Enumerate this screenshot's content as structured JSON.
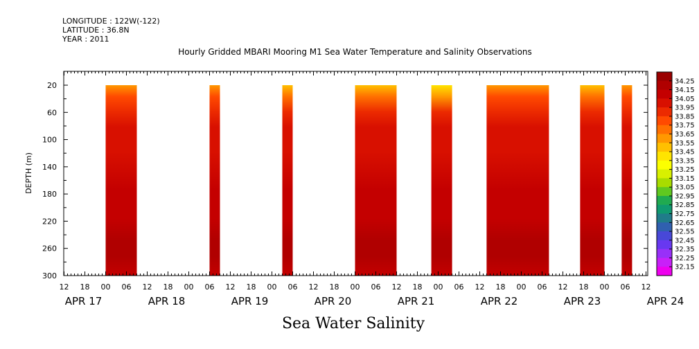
{
  "header": {
    "longitude": "LONGITUDE : 122W(-122)",
    "latitude": "LATITUDE : 36.8N",
    "year": "YEAR : 2011",
    "title": "Hourly Gridded MBARI Mooring M1 Sea Water Temperature and Salinity Observations"
  },
  "footer": {
    "label": "Sea Water Salinity"
  },
  "chart_data": {
    "type": "heatmap",
    "title": "Hourly Gridded MBARI Mooring M1 Sea Water Temperature and Salinity Observations",
    "xlabel": "",
    "ylabel": "DEPTH (m)",
    "y_ticks": [
      20,
      60,
      100,
      140,
      180,
      220,
      260,
      300
    ],
    "ylim": [
      300,
      0
    ],
    "x_hours_per_tick": 6,
    "x_hour_labels": [
      "12",
      "18",
      "00",
      "06",
      "12",
      "18",
      "00",
      "06",
      "12",
      "18",
      "00",
      "06",
      "12",
      "18",
      "00",
      "06",
      "12",
      "18",
      "00",
      "06",
      "12",
      "18",
      "00",
      "06",
      "12",
      "18",
      "00",
      "06",
      "12"
    ],
    "x_date_labels": [
      {
        "label": "APR 17",
        "tick": 0
      },
      {
        "label": "APR 18",
        "tick": 4
      },
      {
        "label": "APR 19",
        "tick": 8
      },
      {
        "label": "APR 20",
        "tick": 12
      },
      {
        "label": "APR 21",
        "tick": 16
      },
      {
        "label": "APR 22",
        "tick": 20
      },
      {
        "label": "APR 23",
        "tick": 24
      },
      {
        "label": "APR 24",
        "tick": 28
      }
    ],
    "colorbar_levels": [
      "34.25",
      "34.15",
      "34.05",
      "33.95",
      "33.85",
      "33.75",
      "33.65",
      "33.55",
      "33.45",
      "33.35",
      "33.25",
      "33.15",
      "33.05",
      "32.95",
      "32.85",
      "32.75",
      "32.65",
      "32.55",
      "32.45",
      "32.35",
      "32.25",
      "32.15"
    ],
    "colorbar_colors": [
      "#9a0000",
      "#b00000",
      "#c40000",
      "#d81000",
      "#ec2a00",
      "#ff4a00",
      "#ff7000",
      "#ff9800",
      "#ffc000",
      "#ffe400",
      "#fcff00",
      "#d8f000",
      "#a8dc00",
      "#60c820",
      "#20aa50",
      "#109a70",
      "#207c8a",
      "#3060b0",
      "#4848d8",
      "#6838f0",
      "#9830f8",
      "#c820f8",
      "#ee00ee"
    ],
    "data_segments": [
      {
        "start_tick": 2.0,
        "end_tick": 3.5,
        "surface_salinity": 33.55
      },
      {
        "start_tick": 7.0,
        "end_tick": 7.5,
        "surface_salinity": 33.55
      },
      {
        "start_tick": 10.5,
        "end_tick": 11.0,
        "surface_salinity": 33.45
      },
      {
        "start_tick": 14.0,
        "end_tick": 16.0,
        "surface_salinity": 33.45
      },
      {
        "start_tick": 17.67,
        "end_tick": 18.67,
        "surface_salinity": 33.35
      },
      {
        "start_tick": 20.33,
        "end_tick": 23.33,
        "surface_salinity": 33.55
      },
      {
        "start_tick": 24.83,
        "end_tick": 26.0,
        "surface_salinity": 33.45
      },
      {
        "start_tick": 26.83,
        "end_tick": 27.33,
        "surface_salinity": 33.55
      }
    ]
  }
}
